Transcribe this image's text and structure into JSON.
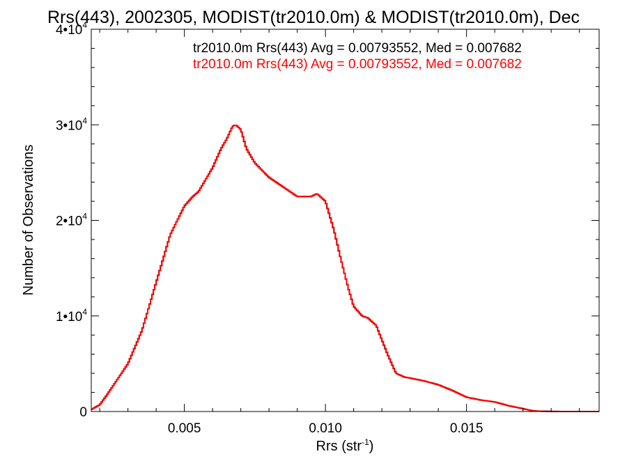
{
  "chart_data": {
    "type": "line",
    "title": "Rrs(443), 2002305, MODIST(tr2010.0m) & MODIST(tr2010.0m), Dec",
    "xlabel": "Rrs (str",
    "xlabel_exp": "-1",
    "xlabel_close": ")",
    "ylabel": "Number of Observations",
    "xlim": [
      0.0017,
      0.0197
    ],
    "ylim": [
      0,
      40000
    ],
    "grid": false,
    "legend_position": "top-right",
    "x_ticks": [
      {
        "value": 0.005,
        "label": "0.005"
      },
      {
        "value": 0.01,
        "label": "0.010"
      },
      {
        "value": 0.015,
        "label": "0.015"
      }
    ],
    "y_ticks": [
      {
        "value": 0,
        "base": "0",
        "exp": ""
      },
      {
        "value": 10000,
        "base": "1•10",
        "exp": "4"
      },
      {
        "value": 20000,
        "base": "2•10",
        "exp": "4"
      },
      {
        "value": 30000,
        "base": "3•10",
        "exp": "4"
      },
      {
        "value": 40000,
        "base": "4•10",
        "exp": "4"
      }
    ],
    "series": [
      {
        "name": "tr2010.0m Rrs(443) Avg = 0.00793552, Med = 0.007682",
        "color": "#000000",
        "x": [
          0.0017,
          0.002,
          0.0022,
          0.0025,
          0.003,
          0.0035,
          0.004,
          0.0045,
          0.005,
          0.0053,
          0.0055,
          0.006,
          0.0063,
          0.0065,
          0.0067,
          0.0068,
          0.0069,
          0.007,
          0.0072,
          0.0075,
          0.008,
          0.0085,
          0.009,
          0.0095,
          0.0097,
          0.01,
          0.0103,
          0.0105,
          0.0108,
          0.011,
          0.0113,
          0.0115,
          0.0118,
          0.012,
          0.0122,
          0.0125,
          0.0128,
          0.013,
          0.0135,
          0.014,
          0.0145,
          0.015,
          0.0155,
          0.016,
          0.0165,
          0.017,
          0.0173,
          0.0175,
          0.018,
          0.0185,
          0.019,
          0.0197
        ],
        "y": [
          200,
          700,
          1500,
          2800,
          5000,
          8500,
          13500,
          18500,
          21500,
          22500,
          23000,
          25500,
          27500,
          28500,
          29800,
          30000,
          29800,
          29500,
          27500,
          26000,
          24500,
          23500,
          22500,
          22500,
          22800,
          22000,
          19000,
          16500,
          13000,
          11000,
          10000,
          9800,
          9000,
          7500,
          6000,
          4000,
          3600,
          3500,
          3200,
          2800,
          2200,
          1500,
          1200,
          1000,
          600,
          300,
          100,
          40,
          10,
          0,
          0,
          0
        ]
      },
      {
        "name": "tr2010.0m Rrs(443) Avg = 0.00793552, Med = 0.007682",
        "color": "#ff0000",
        "x": [
          0.0017,
          0.002,
          0.0022,
          0.0025,
          0.003,
          0.0035,
          0.004,
          0.0045,
          0.005,
          0.0053,
          0.0055,
          0.006,
          0.0063,
          0.0065,
          0.0067,
          0.0068,
          0.0069,
          0.007,
          0.0072,
          0.0075,
          0.008,
          0.0085,
          0.009,
          0.0095,
          0.0097,
          0.01,
          0.0103,
          0.0105,
          0.0108,
          0.011,
          0.0113,
          0.0115,
          0.0118,
          0.012,
          0.0122,
          0.0125,
          0.0128,
          0.013,
          0.0135,
          0.014,
          0.0145,
          0.015,
          0.0155,
          0.016,
          0.0165,
          0.017,
          0.0173,
          0.0175,
          0.018,
          0.0185,
          0.019,
          0.0197
        ],
        "y": [
          200,
          700,
          1500,
          2800,
          5000,
          8500,
          13500,
          18500,
          21500,
          22500,
          23000,
          25500,
          27500,
          28500,
          29800,
          30000,
          29800,
          29500,
          27500,
          26000,
          24500,
          23500,
          22500,
          22500,
          22800,
          22000,
          19000,
          16500,
          13000,
          11000,
          10000,
          9800,
          9000,
          7500,
          6000,
          4000,
          3600,
          3500,
          3200,
          2800,
          2200,
          1500,
          1200,
          1000,
          600,
          300,
          100,
          40,
          10,
          0,
          0,
          0
        ]
      }
    ]
  }
}
